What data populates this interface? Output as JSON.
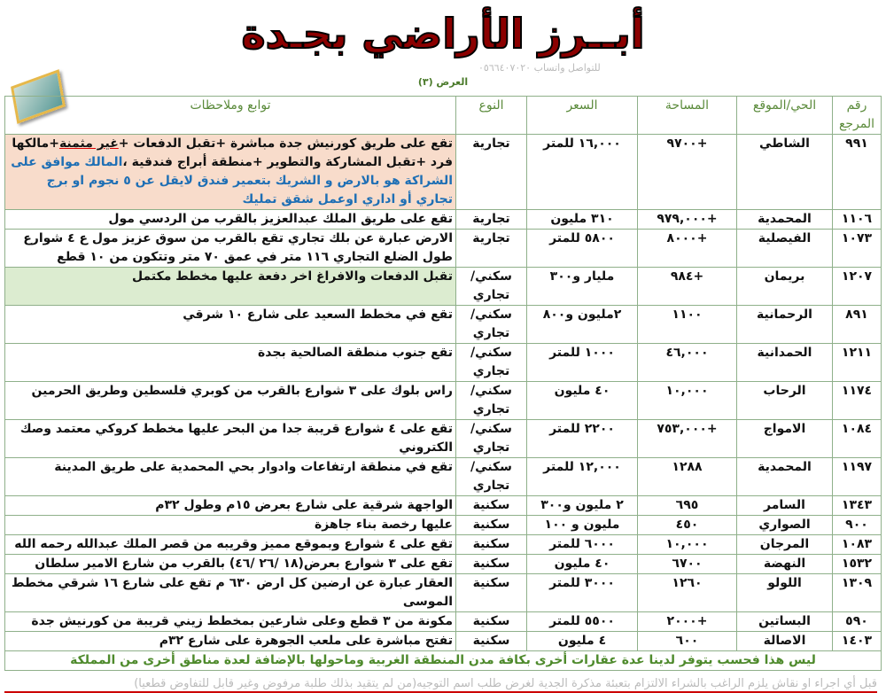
{
  "title": "أبــرز الأراضي بجـدة",
  "subtitle": "العرض (٣)",
  "contact": "للتواصل واتساب ٠٥٦٦٤٠٧٠٢٠",
  "headers": {
    "ref": "رقم المرجع",
    "district": "الحي/الموقع",
    "area": "المساحة",
    "price": "السعر",
    "type": "النوع",
    "notes": "توابع وملاحظات"
  },
  "rows": [
    {
      "ref": "٩٩١",
      "district": "الشاطي",
      "area": "+٩٧٠٠",
      "price": "١٦,٠٠٠ للمتر",
      "type": "تجارية",
      "notes_a": "تقع على طريق كورنيش جدة مباشرة +تقبل الدفعات +",
      "notes_ul": "غير مثمنة",
      "notes_b": "+مالكها فرد +تقبل المشاركة والتطوير +منطقة أبراج فندقية ،",
      "notes_blue": "المالك موافق على الشراكة هو بالارض و الشريك بتعمير فندق لايقل عن ٥ نجوم او برج تجاري أو اداري اوعمل شقق تمليك"
    },
    {
      "ref": "١١٠٦",
      "district": "المحمدية",
      "area": "+٩٧٩,٠٠٠",
      "price": "٣١٠ مليون",
      "type": "تجارية",
      "notes": "تقع على طريق الملك عبدالعزيز بالقرب من الردسي مول"
    },
    {
      "ref": "١٠٧٣",
      "district": "الفيصلية",
      "area": "+٨٠٠٠",
      "price": "٥٨٠٠ للمتر",
      "type": "تجارية",
      "notes": "الارض عبارة عن بلك تجاري تقع بالقرب من سوق عزيز مول ع ٤ شوارع",
      "notes2": "طول الضلع التجاري ١١٦ متر في عمق ٧٠ متر وتتكون من ١٠ قطع"
    },
    {
      "ref": "١٢٠٧",
      "district": "بريمان",
      "area": "+٩٨٤",
      "price": "مليار و٣٠٠",
      "type": "سكني/تجاري",
      "notes": "تقبل الدفعات والافراغ اخر دفعة عليها مخطط مكتمل"
    },
    {
      "ref": "٨٩١",
      "district": "الرحمانية",
      "area": "١١٠٠",
      "price": "٢مليون و٨٠٠",
      "type": "سكني/تجاري",
      "notes": "تقع في مخطط السعيد على شارع ١٠ شرقي"
    },
    {
      "ref": "١٢١١",
      "district": "الحمدانية",
      "area": "٤٦,٠٠٠",
      "price": "١٠٠٠ للمتر",
      "type": "سكني/تجاري",
      "notes": "تقع جنوب منطقة الصالحية بجدة"
    },
    {
      "ref": "١١٧٤",
      "district": "الرحاب",
      "area": "١٠,٠٠٠",
      "price": "٤٠ مليون",
      "type": "سكني/تجاري",
      "notes": "راس بلوك على ٣ شوارع بالقرب من كوبري فلسطين وطريق الحرمين"
    },
    {
      "ref": "١٠٨٤",
      "district": "الامواج",
      "area": "+٧٥٣,٠٠٠",
      "price": "٢٢٠٠ للمتر",
      "type": "سكني/تجاري",
      "notes": "تقع على ٤ شوارع قريبة جدا من البحر عليها مخطط كروكي معتمد وصك الكتروني"
    },
    {
      "ref": "١١٩٧",
      "district": "المحمدية",
      "area": "١٢٨٨",
      "price": "١٢,٠٠٠ للمتر",
      "type": "سكني/تجاري",
      "notes": "تقع في منطقة ارتفاعات وادوار بحي المحمدية على طريق المدينة"
    },
    {
      "ref": "١٣٤٣",
      "district": "السامر",
      "area": "٦٩٥",
      "price": "٢ مليون و٣٠٠",
      "type": "سكنية",
      "notes": "الواجهة شرقية على شارع بعرض ١٥م وطول ٣٢م"
    },
    {
      "ref": "٩٠٠",
      "district": "الصواري",
      "area": "٤٥٠",
      "price": "مليون و ١٠٠",
      "type": "سكنية",
      "notes": "عليها رخصة بناء جاهزة"
    },
    {
      "ref": "١٠٨٣",
      "district": "المرجان",
      "area": "١٠,٠٠٠",
      "price": "٦٠٠٠ للمتر",
      "type": "سكنية",
      "notes": "تقع على ٤ شوارع وبموقع مميز وقريبه من قصر الملك عبدالله رحمه الله"
    },
    {
      "ref": "١٥٣٢",
      "district": "النهضة",
      "area": "٦٧٠٠",
      "price": "٤٠ مليون",
      "type": "سكنية",
      "notes": "تقع على ٣ شوارع بعرض(١٨ /٢٦ /٤٦) بالقرب من شارع الامير سلطان"
    },
    {
      "ref": "١٣٠٩",
      "district": "اللولو",
      "area": "١٢٦٠",
      "price": "٣٠٠٠ للمتر",
      "type": "سكنية",
      "notes": "العقار عبارة عن ارضين كل ارض ٦٣٠ م تقع على شارع ١٦ شرقي مخطط الموسى"
    },
    {
      "ref": "٥٩٠",
      "district": "البساتين",
      "area": "+٢٠٠٠",
      "price": "٥٥٠٠ للمتر",
      "type": "سكنية",
      "notes": "مكونة من ٣ قطع وعلى شارعين بمخطط زيني قريبة من كورنيش جدة"
    },
    {
      "ref": "١٤٠٣",
      "district": "الاصالة",
      "area": "٦٠٠",
      "price": "٤ مليون",
      "type": "سكنية",
      "notes": "تفتح مباشرة على ملعب الجوهرة على شارع ٣٢م"
    }
  ],
  "footer": "ليس هذا فحسب يتوفر لدينا عدة عقارات أخرى بكافة مدن المنطقة الغربية  وماحولها بالإضافة لعدة مناطق أخرى من المملكة",
  "disclaimer": "قبل أي اجراء او نقاش يلزم الراغب بالشراء الالتزام بتعبئة مذكرة الجدية لغرض طلب اسم التوجيه(من لم يتقيد بذلك طلبة مرفوض وغير قابل للتفاوض قطعيا)"
}
